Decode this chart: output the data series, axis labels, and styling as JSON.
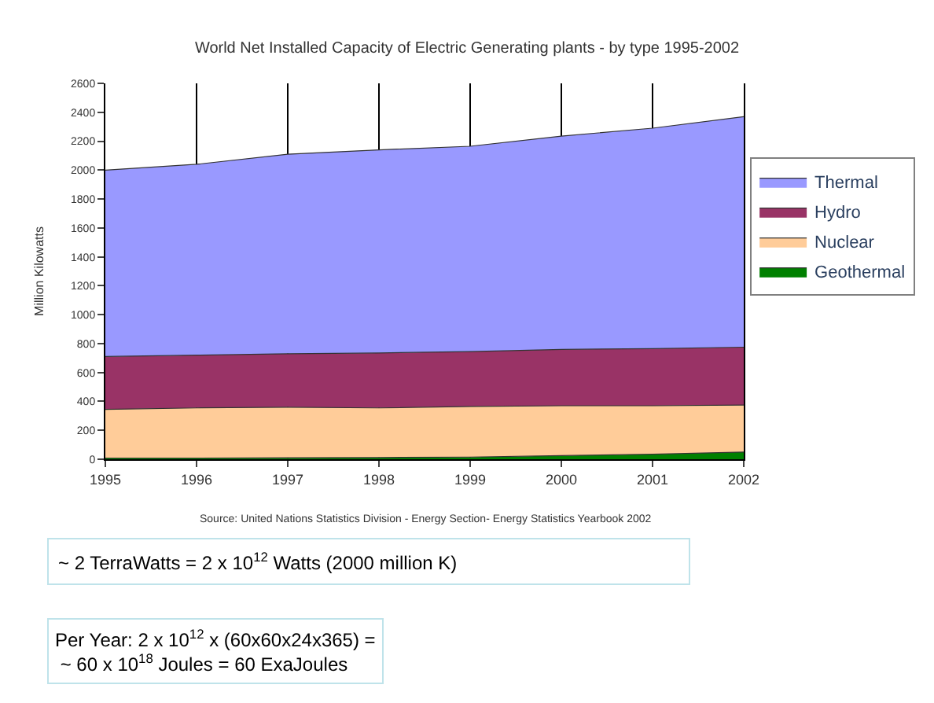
{
  "chart_data": {
    "type": "area",
    "stacked": true,
    "title": "World Net Installed Capacity of Electric Generating plants - by type 1995-2002",
    "ylabel": "Million Kilowatts",
    "x": [
      1995,
      1996,
      1997,
      1998,
      1999,
      2000,
      2001,
      2002
    ],
    "xlim": [
      1995,
      2002
    ],
    "xticks": [
      1995,
      1996,
      1997,
      1998,
      1999,
      2000,
      2001,
      2002
    ],
    "ylim": [
      0,
      2600
    ],
    "yticks": [
      0,
      200,
      400,
      600,
      800,
      1000,
      1200,
      1400,
      1600,
      1800,
      2000,
      2200,
      2400,
      2600
    ],
    "grid": "x",
    "legend": "right",
    "series": [
      {
        "name": "Geothermal",
        "color": "#008000",
        "values": [
          8,
          8,
          10,
          12,
          15,
          25,
          35,
          50
        ]
      },
      {
        "name": "Nuclear",
        "color": "#ffcc99",
        "values": [
          337,
          347,
          350,
          343,
          350,
          345,
          335,
          325
        ]
      },
      {
        "name": "Hydro",
        "color": "#993366",
        "values": [
          365,
          365,
          370,
          380,
          380,
          390,
          395,
          400
        ]
      },
      {
        "name": "Thermal",
        "color": "#9999ff",
        "values": [
          1290,
          1320,
          1380,
          1405,
          1420,
          1475,
          1525,
          1595
        ]
      }
    ],
    "annotations": [
      "Source: United Nations Statistics Division - Energy Section- Energy Statistics Yearbook 2002",
      "~ 2 TerraWatts = 2 x 10$^{12}$ Watts (2000 million K)",
      "Per Year: 2 x 10$^{12}$ x (60x60x24x365) =\n ~ 60 x 10$^{18}$ Joules = 60 ExaJoules"
    ]
  }
}
